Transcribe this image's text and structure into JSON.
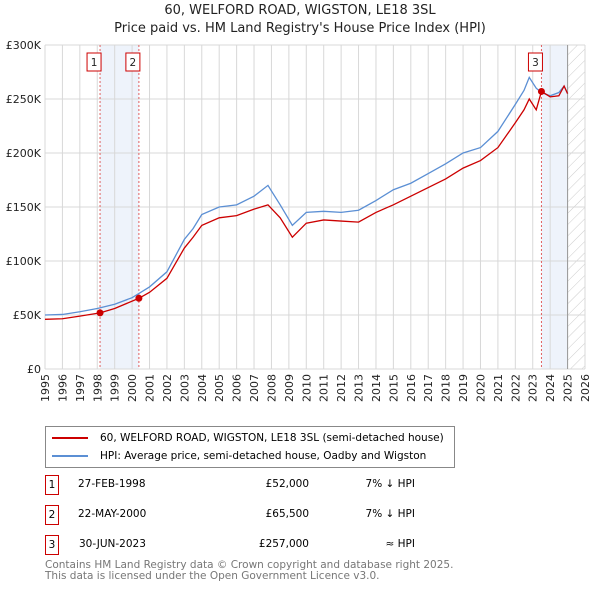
{
  "title": "60, WELFORD ROAD, WIGSTON, LE18 3SL",
  "subtitle": "Price paid vs. HM Land Registry's House Price Index (HPI)",
  "chart_data": {
    "type": "line",
    "xlim": [
      1995,
      2026
    ],
    "ylim": [
      0,
      300000
    ],
    "yticks": [
      {
        "v": 0,
        "label": "£0"
      },
      {
        "v": 50000,
        "label": "£50K"
      },
      {
        "v": 100000,
        "label": "£100K"
      },
      {
        "v": 150000,
        "label": "£150K"
      },
      {
        "v": 200000,
        "label": "£200K"
      },
      {
        "v": 250000,
        "label": "£250K"
      },
      {
        "v": 300000,
        "label": "£300K"
      }
    ],
    "xticks": [
      "1995",
      "1996",
      "1997",
      "1998",
      "1999",
      "2000",
      "2001",
      "2002",
      "2003",
      "2004",
      "2005",
      "2006",
      "2007",
      "2008",
      "2009",
      "2010",
      "2011",
      "2012",
      "2013",
      "2014",
      "2015",
      "2016",
      "2017",
      "2018",
      "2019",
      "2020",
      "2021",
      "2022",
      "2023",
      "2024",
      "2025",
      "2026"
    ],
    "grid": true,
    "series": [
      {
        "name": "60, WELFORD ROAD, WIGSTON, LE18 3SL (semi-detached house)",
        "color": "#cc0000",
        "x": [
          1995,
          1996,
          1997,
          1998.16,
          1999,
          2000.39,
          2001,
          2002,
          2003,
          2003.5,
          2004,
          2005,
          2006,
          2007,
          2007.8,
          2008.5,
          2009.2,
          2010,
          2011,
          2012,
          2013,
          2014,
          2015,
          2016,
          2017,
          2018,
          2019,
          2020,
          2021,
          2022,
          2022.5,
          2022.8,
          2023.2,
          2023.5,
          2024,
          2024.5,
          2024.8,
          2025
        ],
        "y": [
          46000,
          46500,
          49000,
          52000,
          56000,
          65500,
          71000,
          84000,
          112000,
          122000,
          133000,
          140000,
          142000,
          148000,
          152000,
          140000,
          122000,
          135000,
          138000,
          137000,
          136000,
          145000,
          152000,
          160000,
          168000,
          176000,
          186000,
          193000,
          205000,
          228000,
          240000,
          250000,
          240000,
          257000,
          252000,
          253000,
          262000,
          255000
        ]
      },
      {
        "name": "HPI: Average price, semi-detached house, Oadby and Wigston",
        "color": "#5b8fd4",
        "x": [
          1995,
          1996,
          1997,
          1998,
          1999,
          2000,
          2001,
          2002,
          2003,
          2003.5,
          2004,
          2005,
          2006,
          2007,
          2007.8,
          2008.5,
          2009.2,
          2010,
          2011,
          2012,
          2013,
          2014,
          2015,
          2016,
          2017,
          2018,
          2019,
          2020,
          2021,
          2022,
          2022.5,
          2022.8,
          2023.2,
          2023.5,
          2024,
          2024.5,
          2024.8,
          2025
        ],
        "y": [
          50000,
          50500,
          53000,
          56000,
          60000,
          66000,
          76000,
          90000,
          120000,
          130000,
          143000,
          150000,
          152000,
          160000,
          170000,
          152000,
          133000,
          145000,
          146000,
          145000,
          147000,
          156000,
          166000,
          172000,
          181000,
          190000,
          200000,
          205000,
          220000,
          245000,
          258000,
          270000,
          260000,
          256000,
          253000,
          256000,
          262000,
          255000
        ]
      }
    ],
    "sales": [
      {
        "n": "1",
        "x": 1998.16,
        "y": 52000,
        "date": "27-FEB-1998",
        "price": "£52,000",
        "hpi": "7% ↓ HPI"
      },
      {
        "n": "2",
        "x": 2000.39,
        "y": 65500,
        "date": "22-MAY-2000",
        "price": "£65,500",
        "hpi": "7% ↓ HPI"
      },
      {
        "n": "3",
        "x": 2023.5,
        "y": 257000,
        "date": "30-JUN-2023",
        "price": "£257,000",
        "hpi": "≈ HPI"
      }
    ],
    "shaded": [
      [
        1998.16,
        2000.39
      ],
      [
        2023.5,
        2025.0
      ]
    ],
    "hatched_from": 2025.0
  },
  "legend": [
    "60, WELFORD ROAD, WIGSTON, LE18 3SL (semi-detached house)",
    "HPI: Average price, semi-detached house, Oadby and Wigston"
  ],
  "footer": [
    "Contains HM Land Registry data © Crown copyright and database right 2025.",
    "This data is licensed under the Open Government Licence v3.0."
  ]
}
